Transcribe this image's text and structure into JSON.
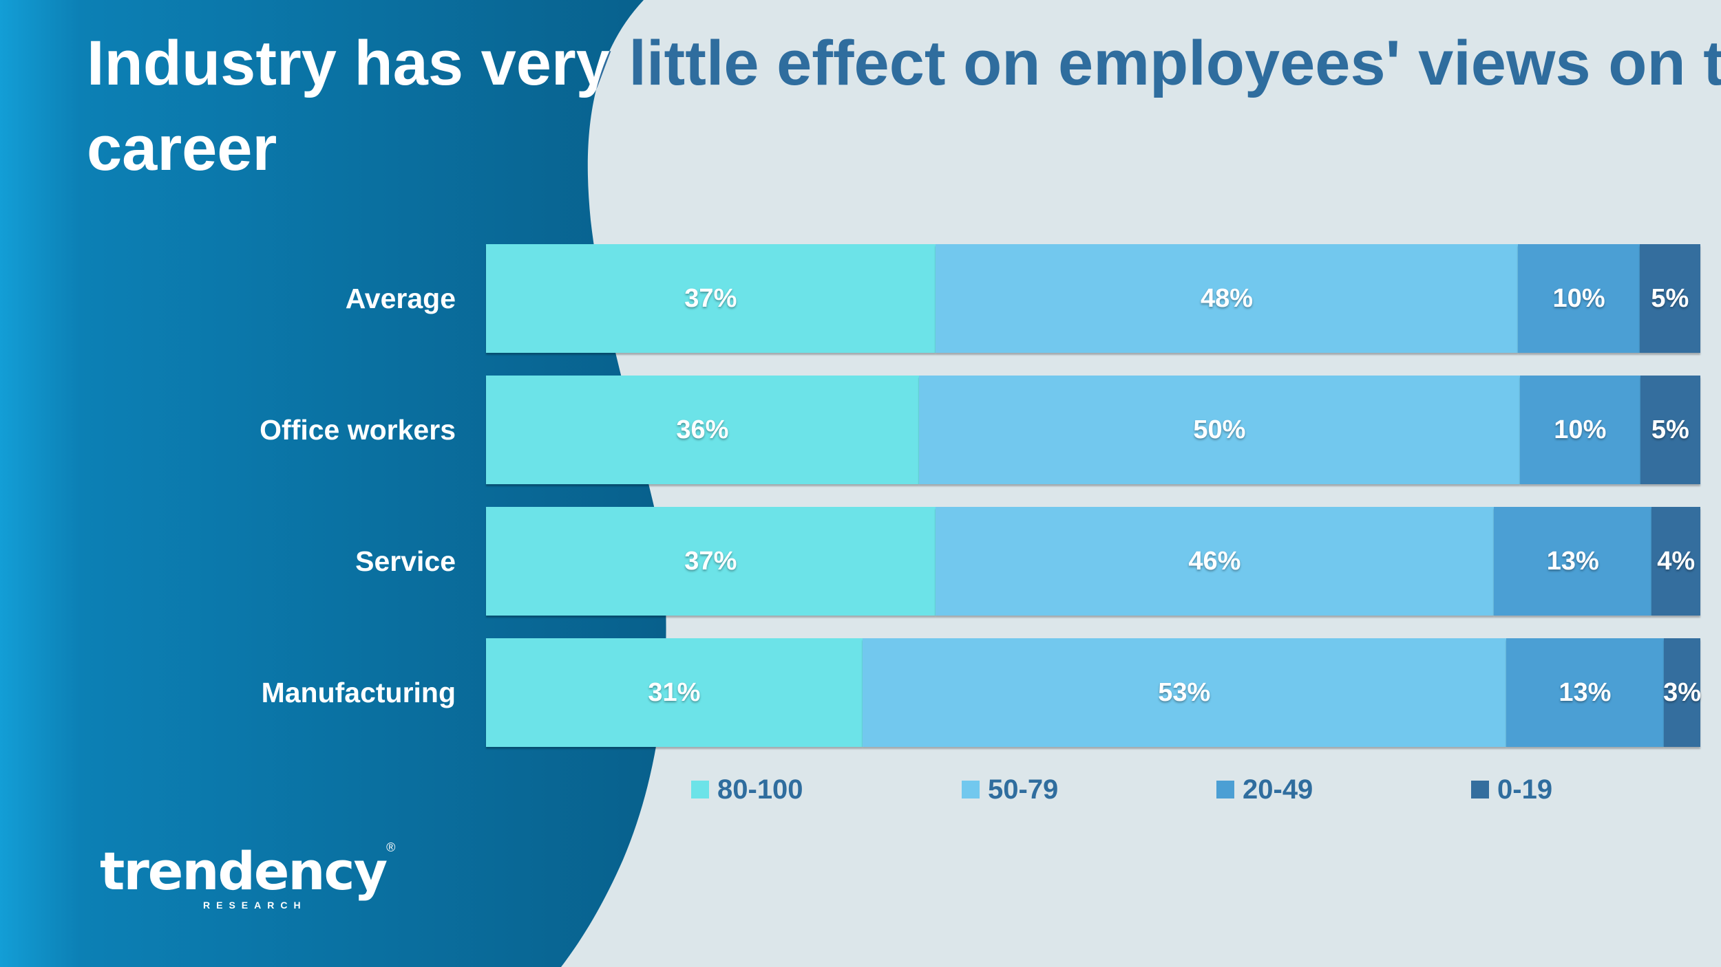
{
  "title": {
    "line1": "Industry has very little effect on employees' views on th",
    "line2": "career"
  },
  "logo": {
    "name": "trendency",
    "sub": "RESEARCH",
    "mark": "®"
  },
  "colors": {
    "light_bg": "#dce6ea",
    "dark_panel": "#0b6e9e",
    "title_on_light": "#2f6d9e",
    "title_on_dark": "#ffffff",
    "series": [
      "#6ce3e8",
      "#72c8ee",
      "#4b9fd4",
      "#346e9e"
    ]
  },
  "chart_data": {
    "type": "bar",
    "orientation": "horizontal",
    "stacked": true,
    "title": "Industry has very little effect on employees' views on th career",
    "categories": [
      "Average",
      "Office workers",
      "Service",
      "Manufacturing"
    ],
    "series": [
      {
        "name": "80-100",
        "values": [
          37,
          36,
          37,
          31
        ],
        "labels": [
          "37%",
          "36%",
          "37%",
          "31%"
        ]
      },
      {
        "name": "50-79",
        "values": [
          48,
          50,
          46,
          53
        ],
        "labels": [
          "48%",
          "50%",
          "46%",
          "53%"
        ]
      },
      {
        "name": "20-49",
        "values": [
          10,
          10,
          13,
          13
        ],
        "labels": [
          "10%",
          "10%",
          "13%",
          "13%"
        ]
      },
      {
        "name": "0-19",
        "values": [
          5,
          5,
          4,
          3
        ],
        "labels": [
          "5%",
          "5%",
          "4%",
          "3%"
        ]
      }
    ],
    "xlabel": "",
    "ylabel": "",
    "legend": "bottom",
    "grid": false
  }
}
